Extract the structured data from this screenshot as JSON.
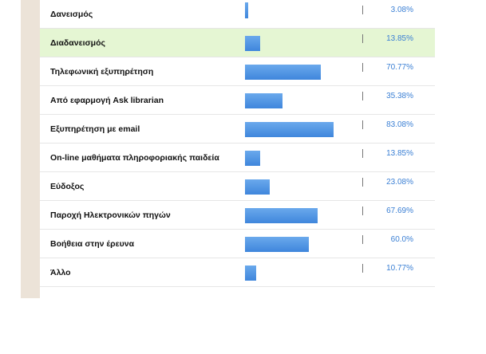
{
  "chart_data": {
    "type": "bar",
    "orientation": "horizontal",
    "categories": [
      "Δανεισμός",
      "Διαδανεισμός",
      "Τηλεφωνική εξυπηρέτηση",
      "Από εφαρμογή Ask librarian",
      "Εξυπηρέτηση με email",
      "On-line μαθήματα πληροφοριακής παιδεία",
      "Εύδοξος",
      "Παροχή Ηλεκτρονικών πηγών",
      "Βοήθεια στην έρευνα",
      "Άλλο"
    ],
    "values": [
      3.08,
      13.85,
      70.77,
      35.38,
      83.08,
      13.85,
      23.08,
      67.69,
      60.0,
      10.77
    ],
    "value_labels": [
      "3.08%",
      "13.85%",
      "70.77%",
      "35.38%",
      "83.08%",
      "13.85%",
      "23.08%",
      "67.69%",
      "60.0%",
      "10.77%"
    ],
    "xlim": [
      0,
      100
    ],
    "highlighted_index": 1,
    "bar_color": "#4a90e2",
    "highlight_color": "#e5f6d3",
    "label_color": "#3a7fd4"
  }
}
